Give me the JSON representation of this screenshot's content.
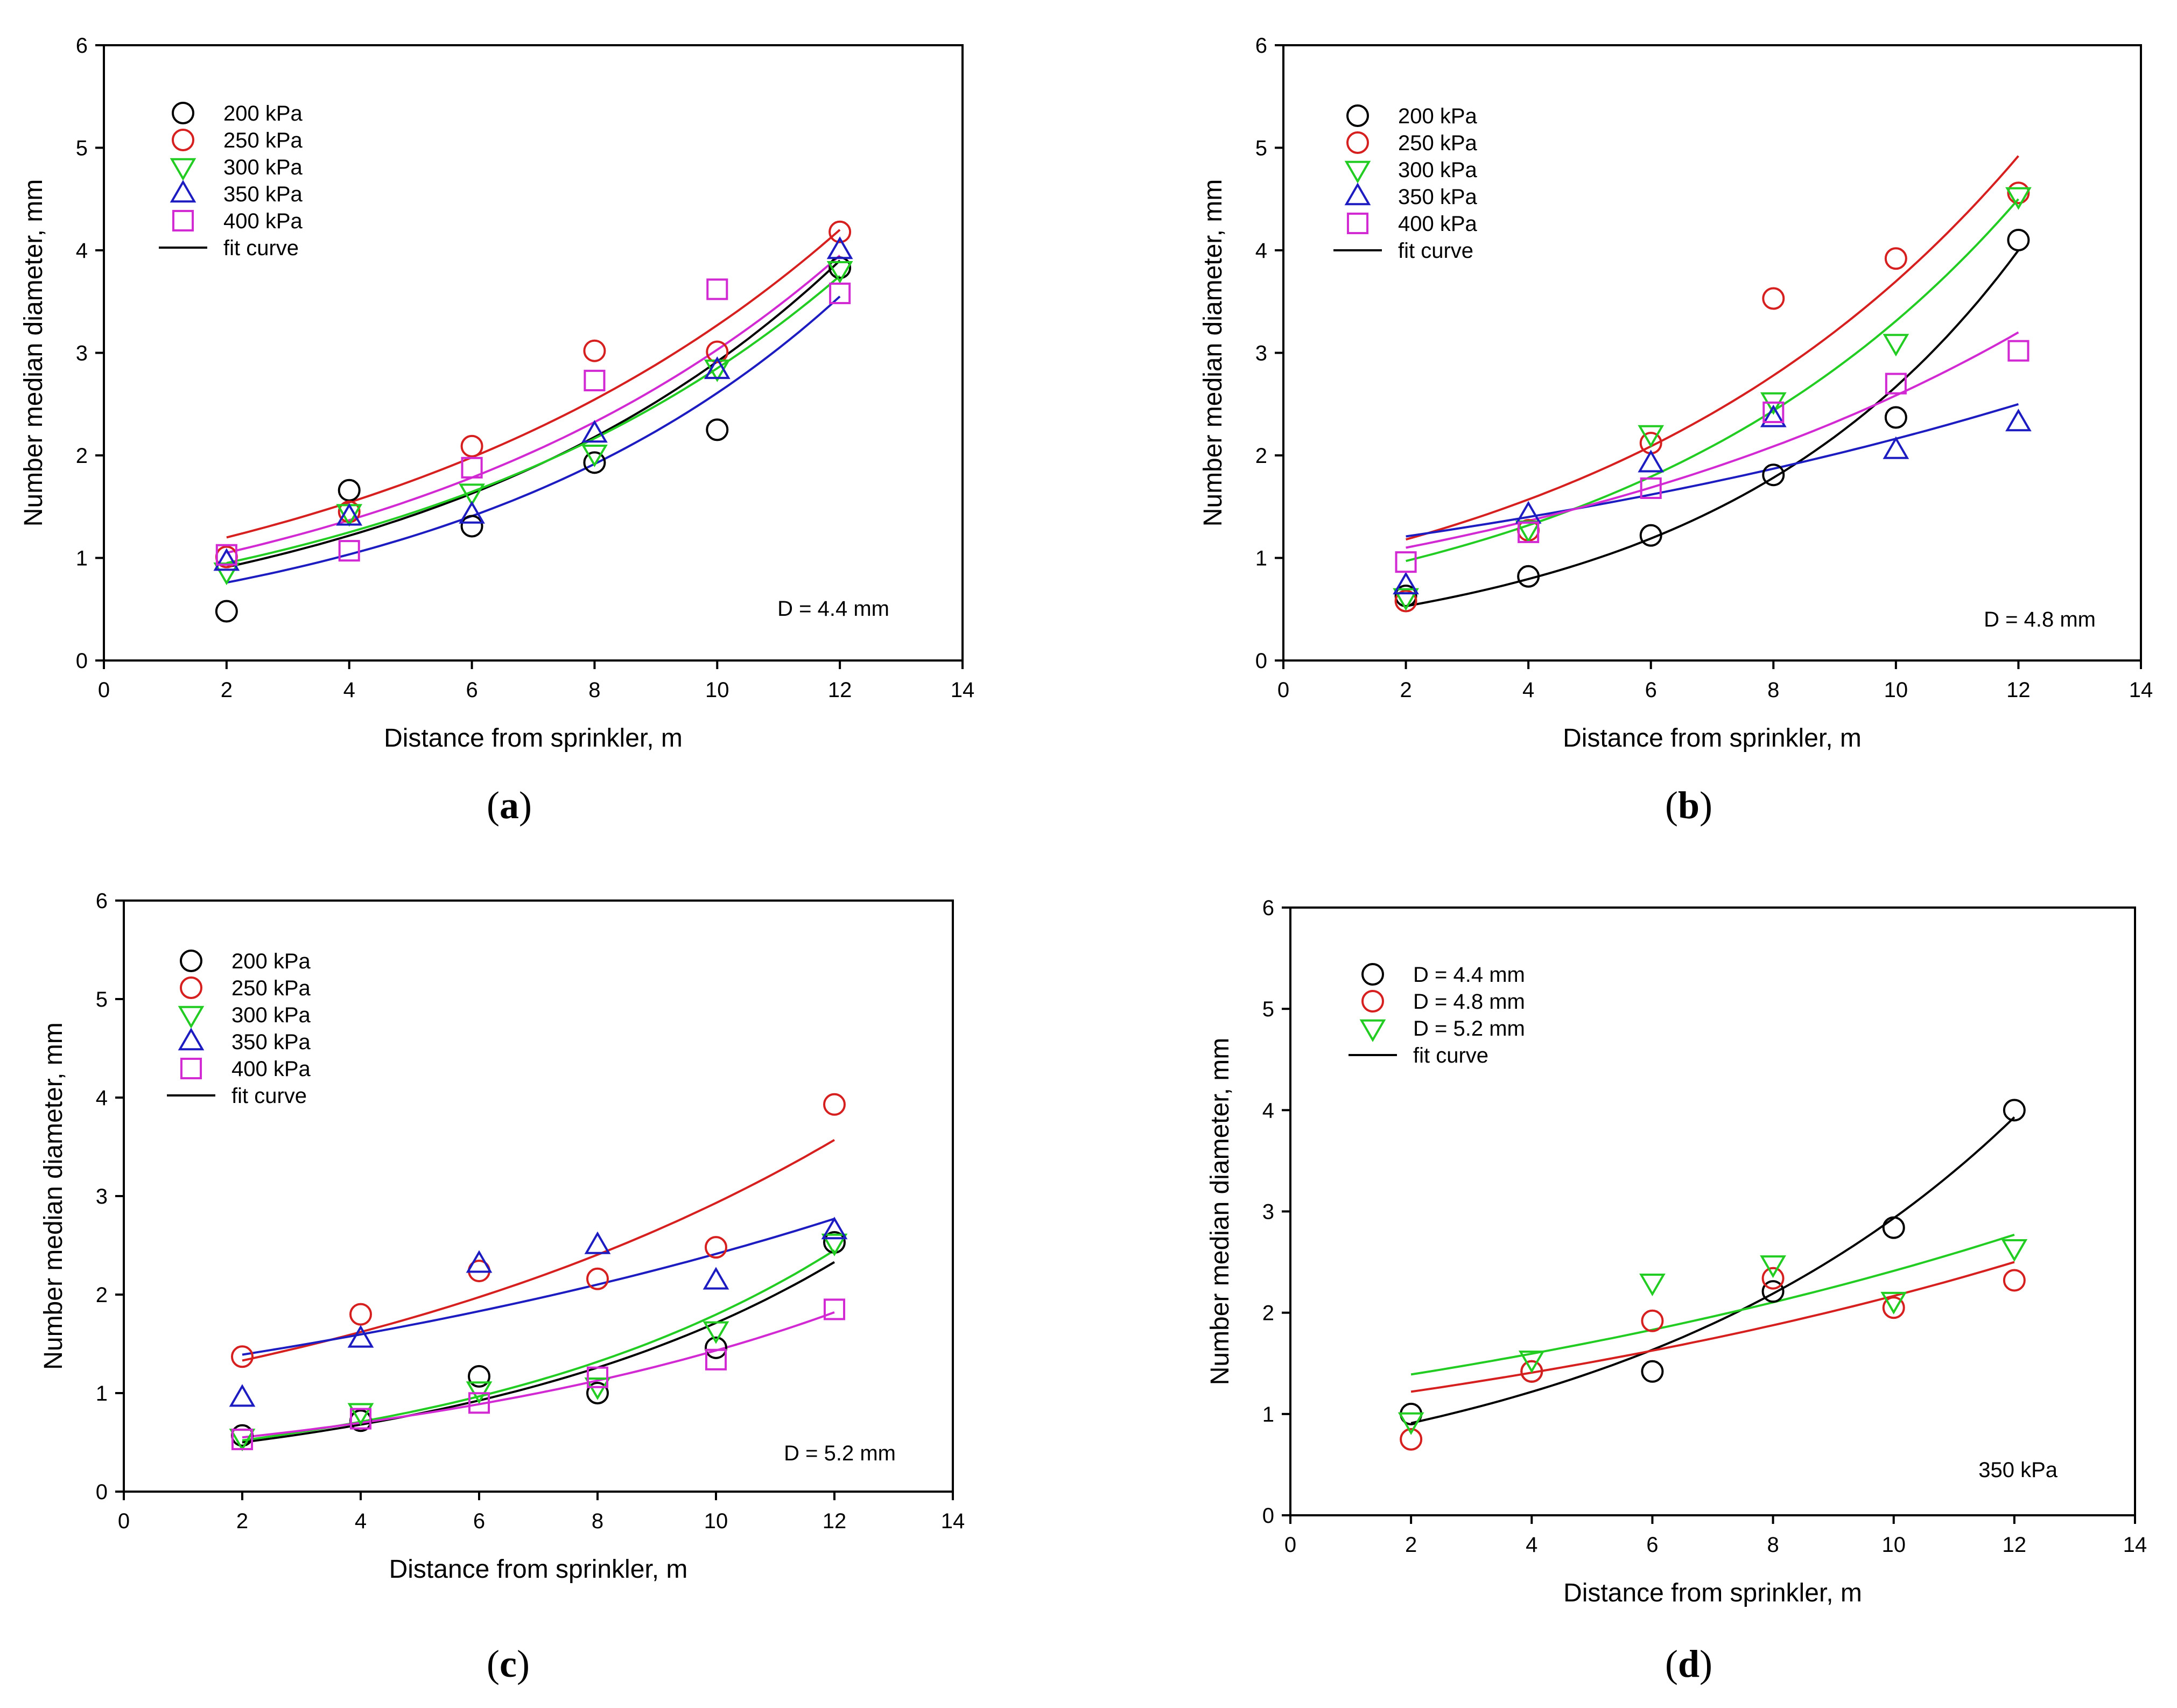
{
  "chart_data": [
    {
      "type": "scatter",
      "panel": "a",
      "caption": {
        "open": "(",
        "letter": "a",
        "close": ")"
      },
      "title": "",
      "xlabel": "Distance from sprinkler, m",
      "ylabel": "Number median diameter, mm",
      "xlim": [
        0,
        14
      ],
      "ylim": [
        0,
        6
      ],
      "xticks": [
        "0",
        "2",
        "4",
        "6",
        "8",
        "10",
        "12",
        "14"
      ],
      "yticks": [
        "0",
        "1",
        "2",
        "3",
        "4",
        "5",
        "6"
      ],
      "annotation": "D = 4.4 mm",
      "legend_fit_label": "fit curve",
      "legend_position": "top-left",
      "x": [
        2,
        4,
        6,
        8,
        10,
        12
      ],
      "series": [
        {
          "name": "200 kPa",
          "marker": "circle",
          "color": "#000000",
          "values": [
            0.48,
            1.66,
            1.31,
            1.93,
            2.25,
            3.83
          ],
          "fit": [
            0.91,
            3.9
          ]
        },
        {
          "name": "250 kPa",
          "marker": "circle",
          "color": "#d62020",
          "values": [
            1.01,
            1.45,
            2.09,
            3.02,
            3.01,
            4.18
          ],
          "fit": [
            1.2,
            4.2
          ]
        },
        {
          "name": "300 kPa",
          "marker": "triangle-down",
          "color": "#22cc22",
          "values": [
            0.87,
            1.44,
            1.64,
            2.02,
            2.85,
            3.81
          ],
          "fit": [
            0.95,
            3.75
          ]
        },
        {
          "name": "350 kPa",
          "marker": "triangle-up",
          "color": "#1c1cc0",
          "values": [
            0.96,
            1.4,
            1.42,
            2.21,
            2.83,
            4.0
          ],
          "fit": [
            0.76,
            3.55
          ]
        },
        {
          "name": "400 kPa",
          "marker": "square",
          "color": "#d22ad2",
          "values": [
            1.03,
            1.07,
            1.88,
            2.73,
            3.62,
            3.58
          ],
          "fit": [
            1.05,
            3.95
          ]
        }
      ]
    },
    {
      "type": "scatter",
      "panel": "b",
      "caption": {
        "open": "(",
        "letter": "b",
        "close": ")"
      },
      "title": "",
      "xlabel": "Distance from sprinkler, m",
      "ylabel": "Number median diameter, mm",
      "xlim": [
        0,
        14
      ],
      "ylim": [
        0,
        6
      ],
      "xticks": [
        "0",
        "2",
        "4",
        "6",
        "8",
        "10",
        "12",
        "14"
      ],
      "yticks": [
        "0",
        "1",
        "2",
        "3",
        "4",
        "5",
        "6"
      ],
      "annotation": "D = 4.8 mm",
      "legend_fit_label": "fit curve",
      "legend_position": "top-left",
      "x": [
        2,
        4,
        6,
        8,
        10,
        12
      ],
      "series": [
        {
          "name": "200 kPa",
          "marker": "circle",
          "color": "#000000",
          "values": [
            0.63,
            0.82,
            1.22,
            1.81,
            2.37,
            4.1
          ],
          "fit": [
            0.53,
            4.0
          ]
        },
        {
          "name": "250 kPa",
          "marker": "circle",
          "color": "#d62020",
          "values": [
            0.58,
            1.27,
            2.12,
            3.53,
            3.92,
            4.56
          ],
          "fit": [
            1.18,
            4.92
          ]
        },
        {
          "name": "300 kPa",
          "marker": "triangle-down",
          "color": "#22cc22",
          "values": [
            0.62,
            1.28,
            2.21,
            2.53,
            3.1,
            4.53
          ],
          "fit": [
            0.97,
            4.5
          ]
        },
        {
          "name": "350 kPa",
          "marker": "triangle-up",
          "color": "#1c1cc0",
          "values": [
            0.73,
            1.42,
            1.92,
            2.36,
            2.05,
            2.32
          ],
          "fit": [
            1.21,
            2.5
          ]
        },
        {
          "name": "400 kPa",
          "marker": "square",
          "color": "#d22ad2",
          "values": [
            0.96,
            1.25,
            1.68,
            2.42,
            2.7,
            3.02
          ],
          "fit": [
            1.1,
            3.2
          ]
        }
      ]
    },
    {
      "type": "scatter",
      "panel": "c",
      "caption": {
        "open": "(",
        "letter": "c",
        "close": ")"
      },
      "title": "",
      "xlabel": "Distance from sprinkler, m",
      "ylabel": "Number median diameter, mm",
      "xlim": [
        0,
        14
      ],
      "ylim": [
        0,
        6
      ],
      "xticks": [
        "0",
        "2",
        "4",
        "6",
        "8",
        "10",
        "12",
        "14"
      ],
      "yticks": [
        "0",
        "1",
        "2",
        "3",
        "4",
        "5",
        "6"
      ],
      "annotation": "D = 5.2 mm",
      "legend_fit_label": "fit curve",
      "legend_position": "top-left",
      "x": [
        2,
        4,
        6,
        8,
        10,
        12
      ],
      "series": [
        {
          "name": "200 kPa",
          "marker": "circle",
          "color": "#000000",
          "values": [
            0.57,
            0.72,
            1.17,
            1.0,
            1.46,
            2.53
          ],
          "fit": [
            0.5,
            2.33
          ]
        },
        {
          "name": "250 kPa",
          "marker": "circle",
          "color": "#d62020",
          "values": [
            1.37,
            1.8,
            2.24,
            2.16,
            2.48,
            3.93
          ],
          "fit": [
            1.33,
            3.57
          ]
        },
        {
          "name": "300 kPa",
          "marker": "triangle-down",
          "color": "#22cc22",
          "values": [
            0.55,
            0.81,
            1.03,
            1.07,
            1.64,
            2.53
          ],
          "fit": [
            0.52,
            2.45
          ]
        },
        {
          "name": "350 kPa",
          "marker": "triangle-up",
          "color": "#1c1cc0",
          "values": [
            0.95,
            1.55,
            2.31,
            2.5,
            2.14,
            2.65
          ],
          "fit": [
            1.39,
            2.77
          ]
        },
        {
          "name": "400 kPa",
          "marker": "square",
          "color": "#d22ad2",
          "values": [
            0.53,
            0.74,
            0.9,
            1.16,
            1.34,
            1.85
          ],
          "fit": [
            0.55,
            1.82
          ]
        }
      ]
    },
    {
      "type": "scatter",
      "panel": "d",
      "caption": {
        "open": "(",
        "letter": "d",
        "close": ")"
      },
      "title": "",
      "xlabel": "Distance from sprinkler, m",
      "ylabel": "Number median diameter, mm",
      "xlim": [
        0,
        14
      ],
      "ylim": [
        0,
        6
      ],
      "xticks": [
        "0",
        "2",
        "4",
        "6",
        "8",
        "10",
        "12",
        "14"
      ],
      "yticks": [
        "0",
        "1",
        "2",
        "3",
        "4",
        "5",
        "6"
      ],
      "annotation": "350 kPa",
      "legend_fit_label": "fit curve",
      "legend_position": "top-left",
      "x": [
        2,
        4,
        6,
        8,
        10,
        12
      ],
      "series": [
        {
          "name": "D = 4.4 mm",
          "marker": "circle",
          "color": "#000000",
          "values": [
            1.0,
            1.42,
            1.42,
            2.21,
            2.84,
            4.0
          ],
          "fit": [
            0.91,
            3.93
          ]
        },
        {
          "name": "D = 4.8 mm",
          "marker": "circle",
          "color": "#d62020",
          "values": [
            0.75,
            1.42,
            1.92,
            2.34,
            2.05,
            2.32
          ],
          "fit": [
            1.22,
            2.5
          ]
        },
        {
          "name": "D = 5.2 mm",
          "marker": "triangle-down",
          "color": "#22cc22",
          "values": [
            0.93,
            1.54,
            2.3,
            2.48,
            2.12,
            2.64
          ],
          "fit": [
            1.39,
            2.77
          ]
        }
      ]
    }
  ]
}
